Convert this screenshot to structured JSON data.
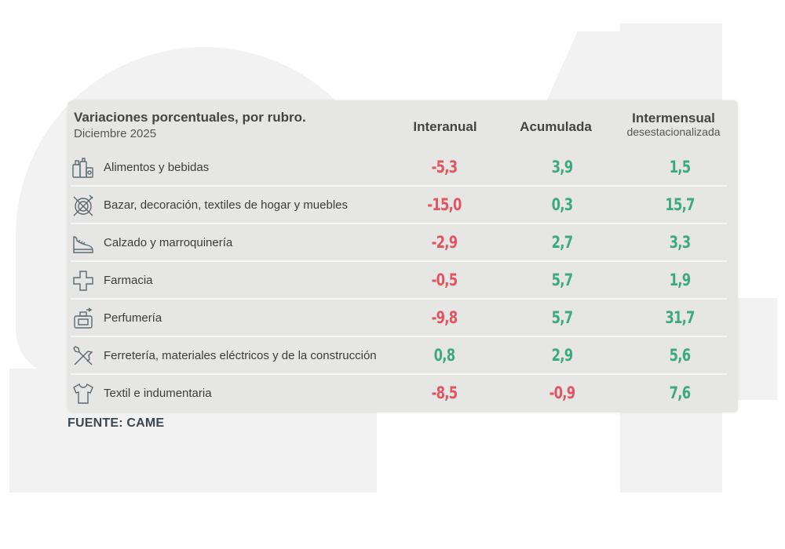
{
  "chart_data": {
    "type": "table",
    "title": "Variaciones porcentuales, por rubro.",
    "subtitle": "Diciembre 2025",
    "columns": {
      "interanual": "Interanual",
      "acumulada": "Acumulada",
      "intermensual": "Intermensual",
      "intermensual_sub": "desestacionalizada"
    },
    "rows": [
      {
        "label": "Alimentos y bebidas",
        "icon": "food-basket-icon",
        "interanual": "-5,3",
        "acumulada": "3,9",
        "intermensual": "1,5"
      },
      {
        "label": "Bazar, decoración, textiles de hogar y muebles",
        "icon": "home-goods-icon",
        "interanual": "-15,0",
        "acumulada": "0,3",
        "intermensual": "15,7"
      },
      {
        "label": "Calzado y marroquinería",
        "icon": "shoe-icon",
        "interanual": "-2,9",
        "acumulada": "2,7",
        "intermensual": "3,3"
      },
      {
        "label": "Farmacia",
        "icon": "pharmacy-cross-icon",
        "interanual": "-0,5",
        "acumulada": "5,7",
        "intermensual": "1,9"
      },
      {
        "label": "Perfumería",
        "icon": "perfume-icon",
        "interanual": "-9,8",
        "acumulada": "5,7",
        "intermensual": "31,7"
      },
      {
        "label": "Ferretería, materiales eléctricos y de la construcción",
        "icon": "tools-icon",
        "interanual": "0,8",
        "acumulada": "2,9",
        "intermensual": "5,6"
      },
      {
        "label": "Textil e indumentaria",
        "icon": "shirt-icon",
        "interanual": "-8,5",
        "acumulada": "-0,9",
        "intermensual": "7,6"
      }
    ],
    "source": "FUENTE: CAME",
    "colors": {
      "negative": "#e05560",
      "positive": "#3daa7e",
      "card_background": "#e6e6e5"
    }
  }
}
